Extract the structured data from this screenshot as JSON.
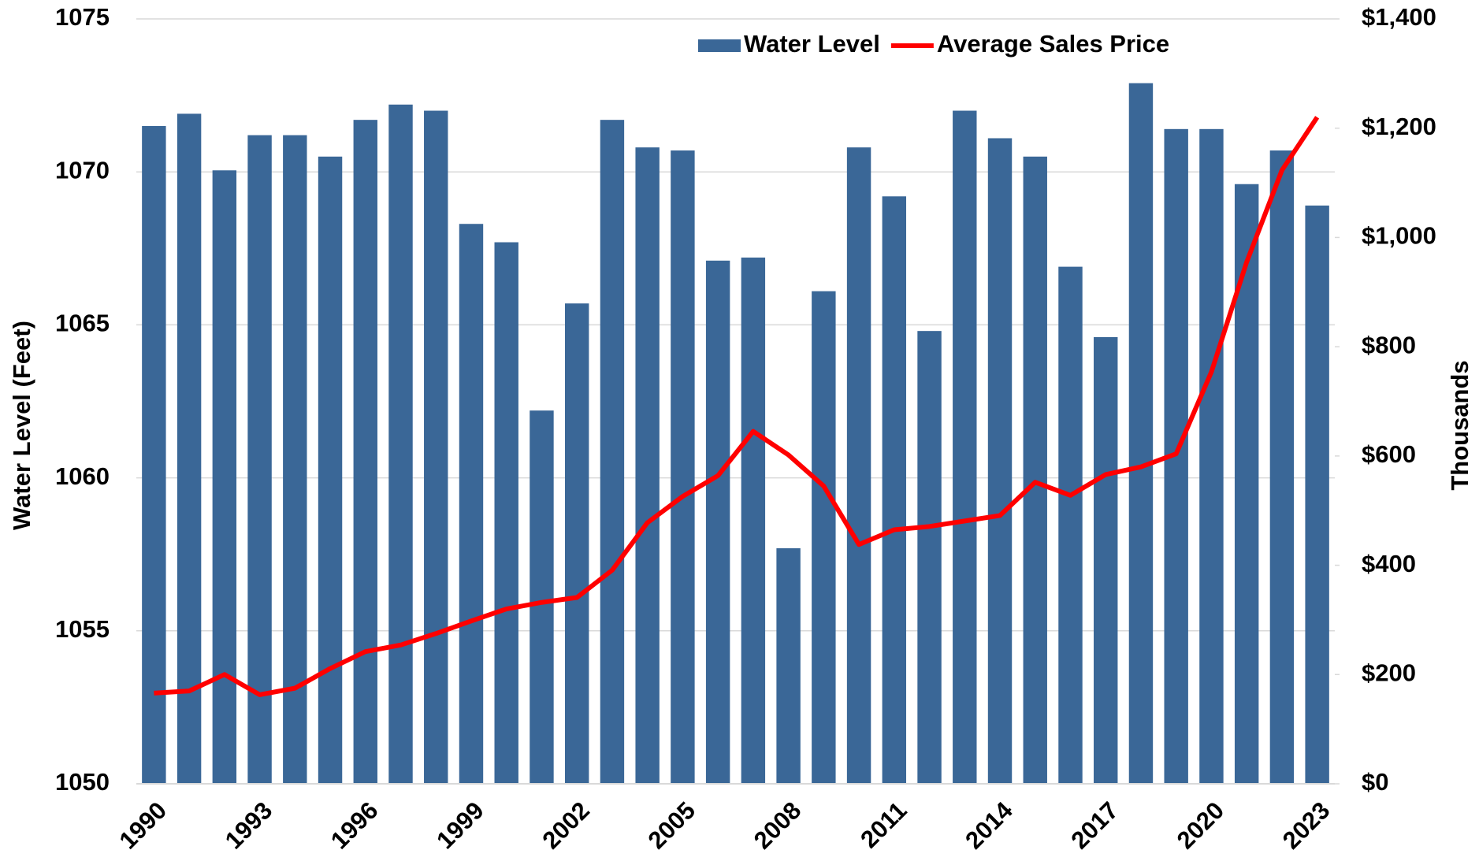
{
  "chart_data": {
    "type": "bar-line",
    "ylabel": "Water Level (Feet)",
    "y2label": "Thousands",
    "categories": [
      "1990",
      null,
      null,
      "1993",
      null,
      null,
      "1996",
      null,
      null,
      "1999",
      null,
      null,
      "2002",
      null,
      null,
      "2005",
      null,
      null,
      "2008",
      null,
      null,
      "2011",
      null,
      null,
      "2014",
      null,
      null,
      "2017",
      null,
      null,
      "2020",
      null,
      null,
      "2023"
    ],
    "series": [
      {
        "name": "Water Level",
        "type": "bar",
        "color": "#3a6797",
        "values": [
          1071.5,
          1071.9,
          1070.05,
          1071.2,
          1071.2,
          1070.5,
          1071.7,
          1072.2,
          1072.0,
          1068.3,
          1067.7,
          1062.2,
          1065.7,
          1071.7,
          1070.8,
          1070.7,
          1067.1,
          1067.2,
          1057.7,
          1066.1,
          1070.8,
          1069.2,
          1064.8,
          1072.0,
          1071.1,
          1070.5,
          1066.9,
          1064.6,
          1072.9,
          1071.4,
          1071.4,
          1069.6,
          1070.7,
          1068.9
        ]
      },
      {
        "name": "Average Sales Price",
        "type": "line",
        "axis": "y2",
        "color": "#ff0000",
        "values": [
          166,
          170,
          200,
          163,
          175,
          211,
          242,
          254,
          275,
          298,
          320,
          332,
          341,
          391,
          478,
          526,
          564,
          645,
          602,
          545,
          438,
          465,
          471,
          481,
          491,
          552,
          528,
          566,
          580,
          604,
          754,
          955,
          1123,
          1220
        ]
      }
    ],
    "ylim": [
      1050,
      1075
    ],
    "yticks": [
      1050,
      1055,
      1060,
      1065,
      1070,
      1075
    ],
    "y2lim": [
      0,
      1400
    ],
    "y2ticks": [
      {
        "value": 0,
        "label": "$0"
      },
      {
        "value": 200,
        "label": "$200"
      },
      {
        "value": 400,
        "label": "$400"
      },
      {
        "value": 600,
        "label": "$600"
      },
      {
        "value": 800,
        "label": "$800"
      },
      {
        "value": 1000,
        "label": "$1,000"
      },
      {
        "value": 1200,
        "label": "$1,200"
      },
      {
        "value": 1400,
        "label": "$1,400"
      }
    ],
    "grid": true,
    "legend": "top-right"
  }
}
